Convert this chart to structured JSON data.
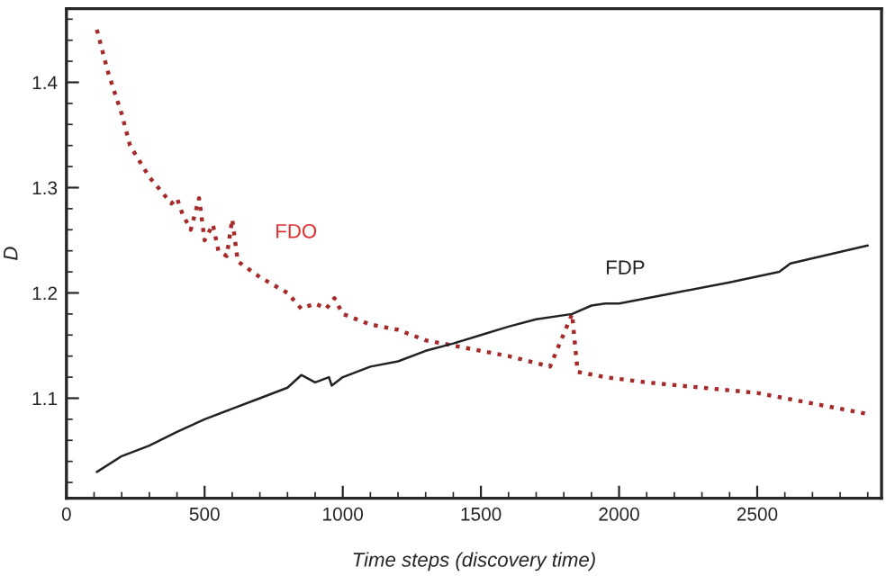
{
  "chart_data": {
    "type": "line",
    "xlabel": "Time steps (discovery time)",
    "ylabel": "D",
    "xlim": [
      0,
      2950
    ],
    "ylim": [
      1.005,
      1.47
    ],
    "xticks": [
      0,
      500,
      1000,
      1500,
      2000,
      2500
    ],
    "yticks": [
      1.1,
      1.2,
      1.3,
      1.4
    ],
    "grid": false,
    "legend": false,
    "series": [
      {
        "name": "FDO",
        "color": "#a52a2a",
        "line_style": "dotted",
        "x": [
          110,
          150,
          200,
          230,
          300,
          380,
          400,
          420,
          450,
          480,
          500,
          530,
          550,
          580,
          600,
          620,
          700,
          800,
          850,
          900,
          940,
          970,
          1000,
          1100,
          1200,
          1300,
          1400,
          1500,
          1600,
          1750,
          1830,
          1850,
          1950,
          2100,
          2300,
          2500,
          2600,
          2900
        ],
        "values": [
          1.45,
          1.41,
          1.37,
          1.34,
          1.31,
          1.285,
          1.29,
          1.275,
          1.26,
          1.29,
          1.25,
          1.265,
          1.24,
          1.235,
          1.27,
          1.23,
          1.215,
          1.2,
          1.185,
          1.19,
          1.185,
          1.195,
          1.18,
          1.17,
          1.165,
          1.155,
          1.15,
          1.145,
          1.14,
          1.13,
          1.18,
          1.125,
          1.12,
          1.115,
          1.11,
          1.105,
          1.1,
          1.085
        ]
      },
      {
        "name": "FDP",
        "color": "#222222",
        "line_style": "solid",
        "x": [
          110,
          200,
          300,
          400,
          500,
          600,
          700,
          800,
          850,
          900,
          950,
          960,
          1000,
          1100,
          1200,
          1300,
          1400,
          1500,
          1600,
          1700,
          1830,
          1900,
          1950,
          2000,
          2200,
          2400,
          2580,
          2620,
          2900
        ],
        "values": [
          1.03,
          1.045,
          1.055,
          1.068,
          1.08,
          1.09,
          1.1,
          1.11,
          1.122,
          1.115,
          1.12,
          1.112,
          1.12,
          1.13,
          1.135,
          1.145,
          1.152,
          1.16,
          1.168,
          1.175,
          1.18,
          1.188,
          1.19,
          1.19,
          1.2,
          1.21,
          1.22,
          1.228,
          1.245
        ]
      }
    ]
  }
}
